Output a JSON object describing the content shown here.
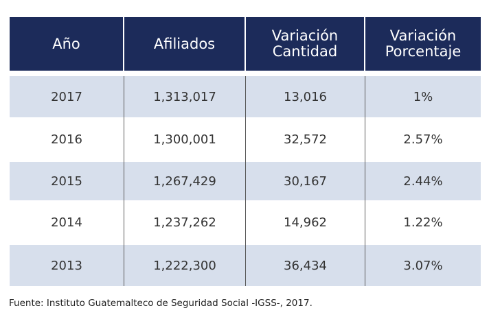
{
  "table": {
    "headers": [
      {
        "line1": "Año",
        "line2": ""
      },
      {
        "line1": "Afiliados",
        "line2": ""
      },
      {
        "line1": "Variación",
        "line2": "Cantidad"
      },
      {
        "line1": "Variación",
        "line2": "Porcentaje"
      }
    ],
    "rows": [
      {
        "year": "2017",
        "affiliates": "1,313,017",
        "variation_qty": "13,016",
        "variation_pct": "1%"
      },
      {
        "year": "2016",
        "affiliates": "1,300,001",
        "variation_qty": "32,572",
        "variation_pct": "2.57%"
      },
      {
        "year": "2015",
        "affiliates": "1,267,429",
        "variation_qty": "30,167",
        "variation_pct": "2.44%"
      },
      {
        "year": "2014",
        "affiliates": "1,237,262",
        "variation_qty": "14,962",
        "variation_pct": "1.22%"
      },
      {
        "year": "2013",
        "affiliates": "1,222,300",
        "variation_qty": "36,434",
        "variation_pct": "3.07%"
      }
    ]
  },
  "source": "Fuente: Instituto Guatemalteco de Seguridad Social -IGSS-, 2017.",
  "colors": {
    "header_bg": "#1c2b5a",
    "shaded_row": "#d7dfec"
  }
}
